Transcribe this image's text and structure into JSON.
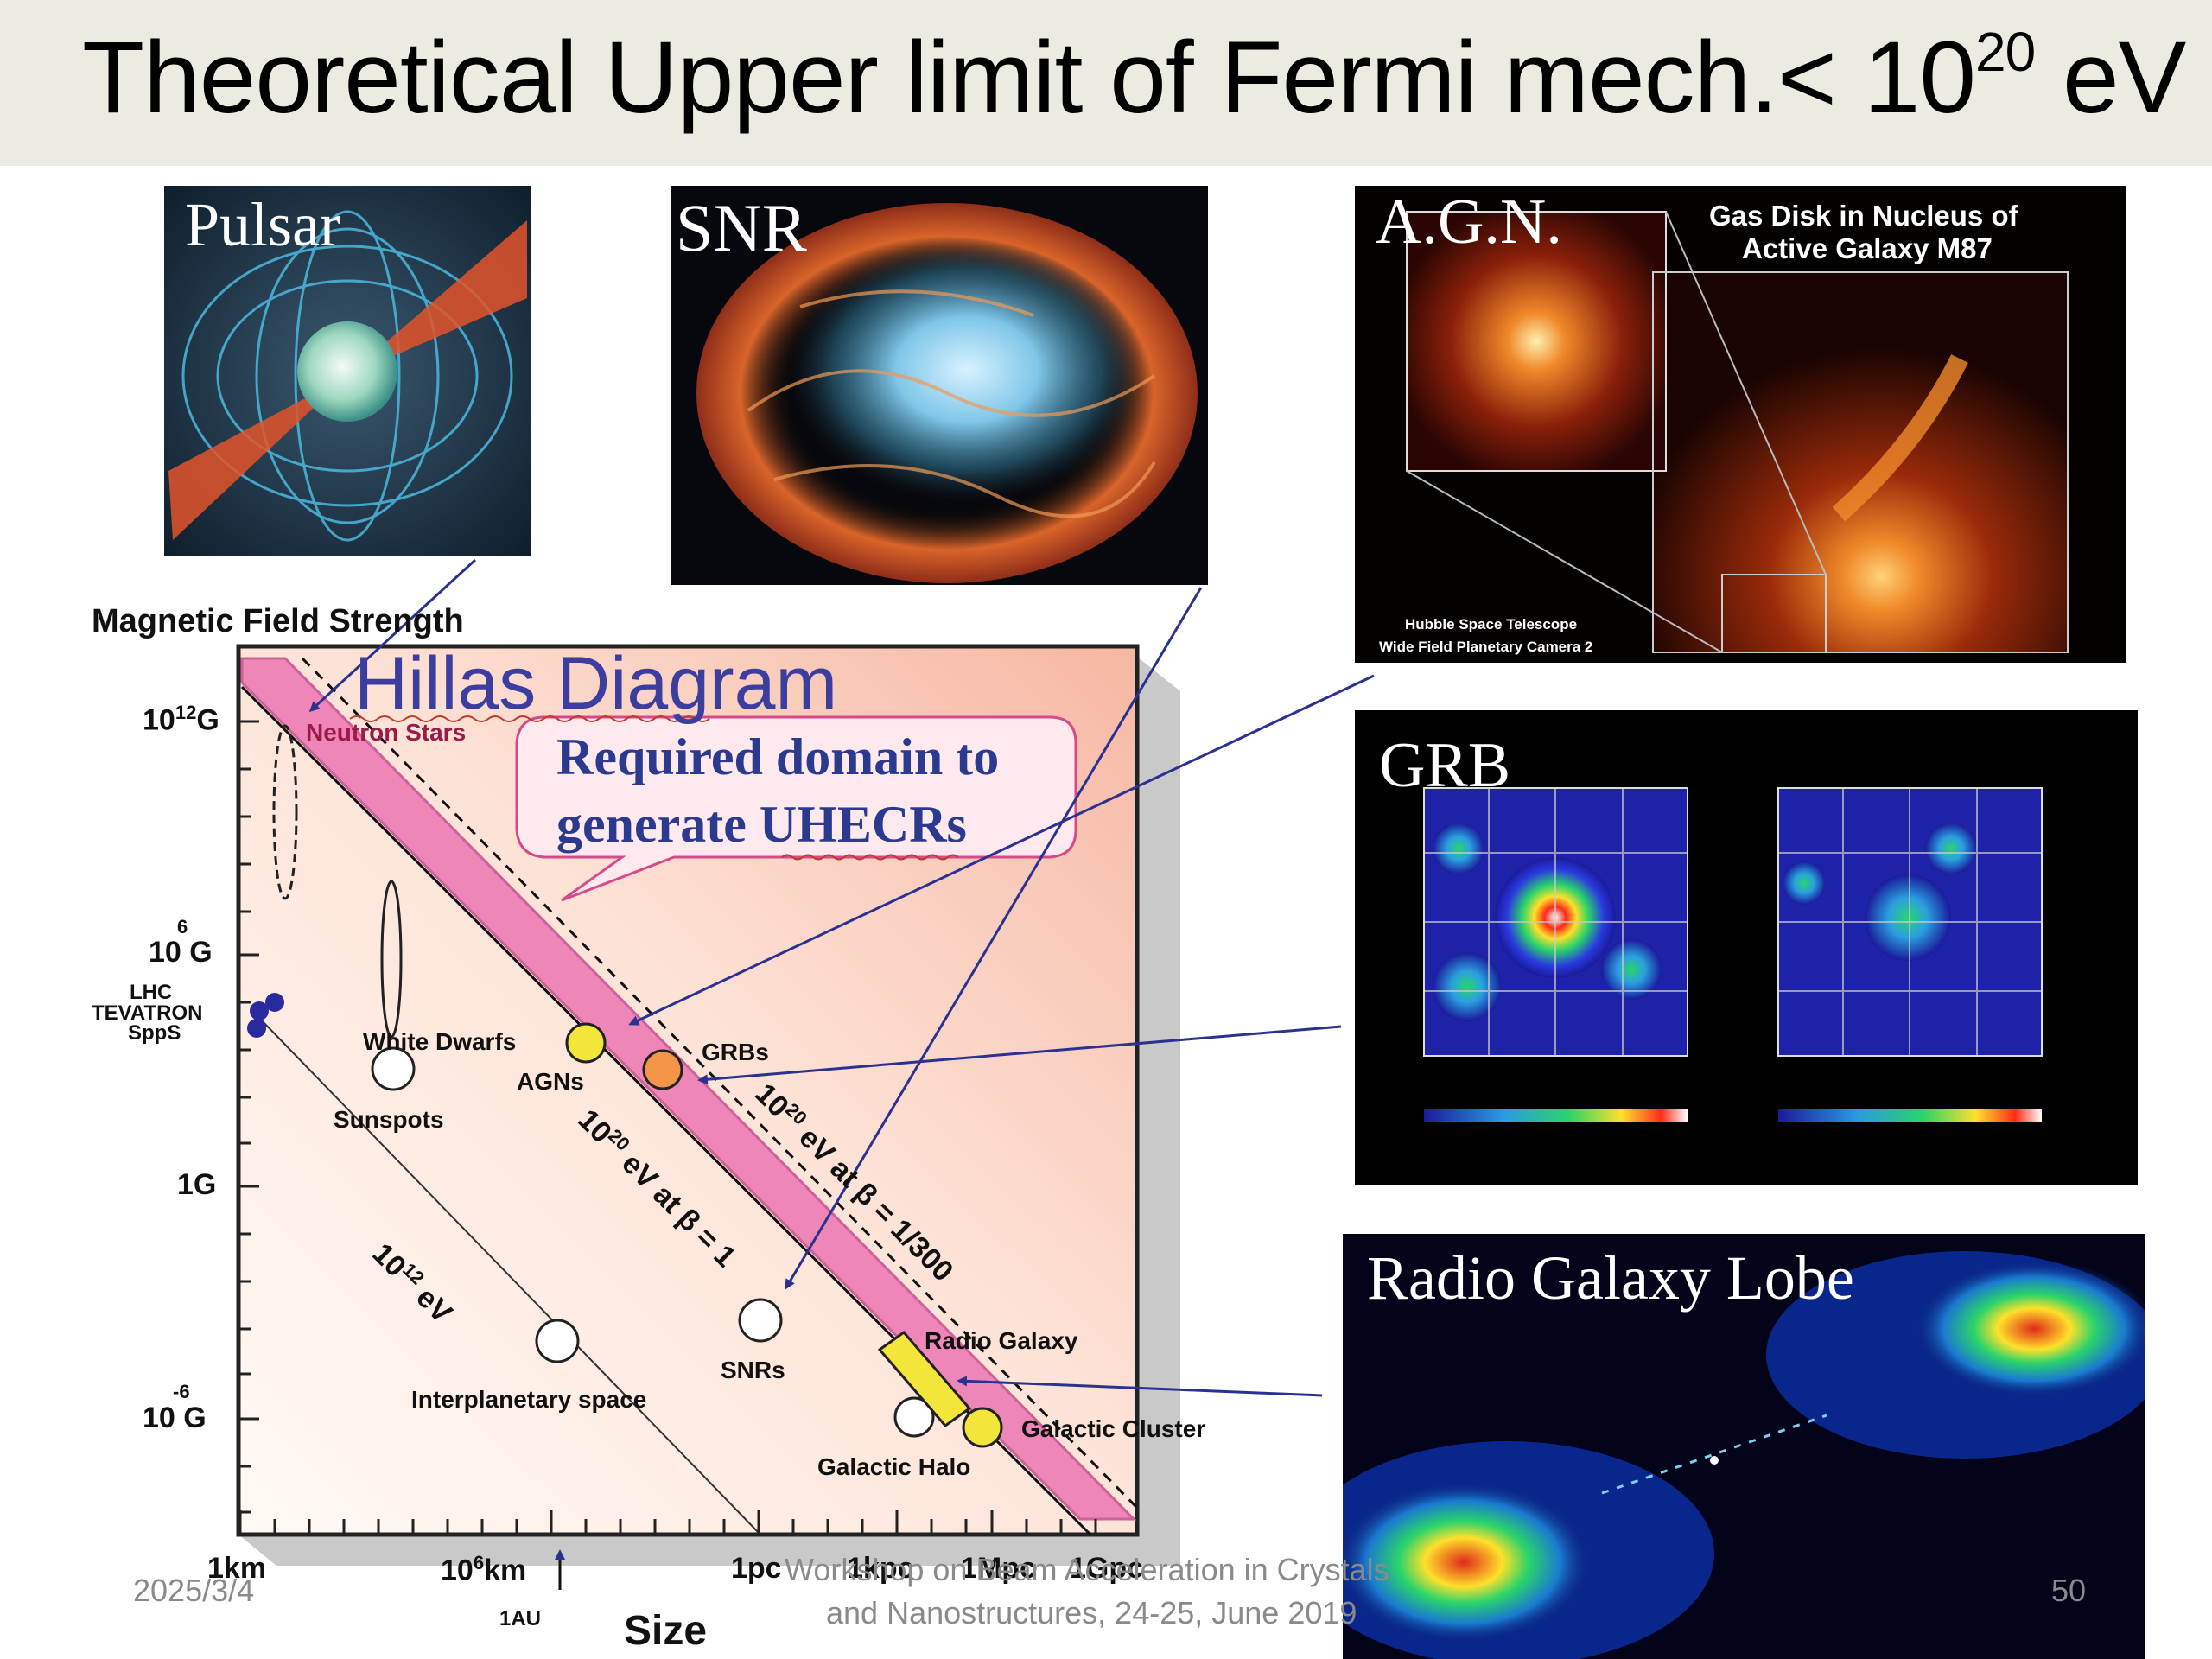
{
  "slide": {
    "title_main": "Theoretical Upper limit of Fermi mech.< 10",
    "title_exp": "20",
    "title_unit": " eV",
    "footer_date": "2025/3/4",
    "footer_line1": "Workshop on Beam Acceleration in Crystals",
    "footer_line2": "and Nanostructures, 24-25, June 2019",
    "page_number": "50"
  },
  "panels": {
    "pulsar": "Pulsar",
    "snr": "SNR",
    "agn": "A.G.N.",
    "agn_caption1": "Gas Disk in Nucleus of",
    "agn_caption2": "Active Galaxy M87",
    "agn_credit1": "Hubble Space Telescope",
    "agn_credit2": "Wide Field Planetary Camera 2",
    "grb": "GRB",
    "radio_lobe": "Radio Galaxy Lobe"
  },
  "diagram": {
    "y_axis_title": "Magnetic Field Strength",
    "heading": "Hillas Diagram",
    "callout_line1": "Required domain to",
    "callout_line2": "generate UHECRs",
    "y_ticks": {
      "t12_base": "10",
      "t12_exp": "12",
      "t12_unit": "G",
      "t6_exp": "6",
      "t6_base": "10 G",
      "t0": "1G",
      "tm6_exp": "-6",
      "tm6_base": "10 G"
    },
    "x_ticks": {
      "km": "1km",
      "mkm_base": "10",
      "mkm_exp": "6",
      "mkm_unit": "km",
      "au": "1AU",
      "pc": "1pc",
      "kpc": "1kpc",
      "mpc": "1Mpc",
      "gpc": "1Gpc"
    },
    "x_axis_title": "Size",
    "accelerators": [
      "LHC",
      "TEVATRON",
      "SppS"
    ],
    "labels": {
      "neutron_stars": "Neutron Stars",
      "white_dwarfs": "White Dwarfs",
      "sunspots": "Sunspots",
      "agns": "AGNs",
      "grbs": "GRBs",
      "interplanetary": "Interplanetary space",
      "snrs": "SNRs",
      "radio_galaxy": "Radio Galaxy",
      "galactic_cluster": "Galactic Cluster",
      "galactic_halo": "Galactic Halo"
    },
    "line_labels": {
      "l12_base": "10",
      "l12_exp": "12",
      "l12_unit": "eV",
      "l20b1_base": "10",
      "l20b1_exp": "20",
      "l20b1_rest": "eV at β = 1",
      "l20b300_base": "10",
      "l20b300_exp": "20",
      "l20b300_rest": "eV at β = 1/300"
    }
  },
  "colors": {
    "band": "#ee86b8",
    "diagram_bg": "#fde2d6",
    "arrow": "#2a3190",
    "callout_text": "#2b3a8f",
    "agn_marker": "#f3e53a",
    "grb_marker": "#f29548"
  }
}
